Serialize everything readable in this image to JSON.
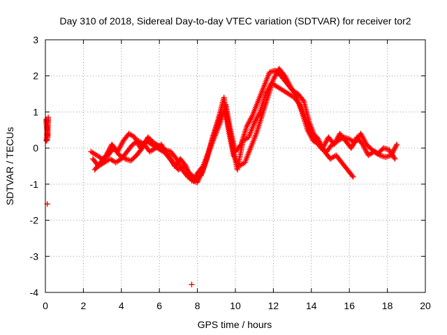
{
  "chart_data": {
    "type": "scatter",
    "title": "Day 310 of 2018, Sidereal Day-to-day VTEC variation (SDTVAR) for receiver tor2",
    "xlabel": "GPS time / hours",
    "ylabel": "SDTVAR / TECUs",
    "xlim": [
      0,
      20
    ],
    "ylim": [
      -4,
      3
    ],
    "xticks": [
      0,
      2,
      4,
      6,
      8,
      10,
      12,
      14,
      16,
      18,
      20
    ],
    "yticks": [
      -4,
      -3,
      -2,
      -1,
      0,
      1,
      2,
      3
    ],
    "grid": true,
    "marker": "plus",
    "color": "#ff0000",
    "series": [
      {
        "name": "tor2",
        "segments": [
          {
            "x": [
              0.05,
              0.05,
              0.08,
              0.1,
              0.12,
              0.15,
              0.05,
              0.1
            ],
            "y": [
              0.8,
              0.7,
              0.55,
              0.4,
              0.3,
              0.85,
              0.2,
              0.25
            ]
          },
          {
            "x": [
              0.1
            ],
            "y": [
              -1.55
            ]
          },
          {
            "x": [
              7.7
            ],
            "y": [
              -3.78
            ]
          },
          {
            "x": [
              2.4,
              2.7,
              3.0,
              3.3,
              3.6,
              3.9,
              4.2,
              4.5,
              4.8,
              5.1,
              5.4,
              5.7,
              6.0,
              6.3,
              6.6,
              6.9,
              7.2,
              7.5,
              7.8,
              8.0,
              8.3,
              8.6,
              8.9,
              9.2,
              9.5,
              9.7,
              10.0,
              10.3,
              10.6,
              10.9,
              11.2,
              11.5,
              11.8,
              12.1,
              12.4,
              12.7,
              13.0,
              13.3,
              13.6,
              13.9,
              14.2,
              14.5,
              14.8,
              15.1,
              15.4,
              15.7,
              16.0,
              16.3,
              16.6,
              16.9,
              17.2,
              17.5,
              17.8,
              18.1,
              18.4
            ],
            "y": [
              -0.1,
              -0.2,
              -0.3,
              -0.2,
              0.0,
              -0.2,
              -0.3,
              -0.35,
              -0.2,
              0.0,
              0.3,
              0.15,
              0.05,
              -0.05,
              -0.1,
              -0.3,
              -0.6,
              -0.8,
              -0.9,
              -0.7,
              -0.5,
              -0.1,
              0.3,
              0.7,
              1.2,
              0.6,
              -0.1,
              0.1,
              0.6,
              0.9,
              1.3,
              1.7,
              2.1,
              2.15,
              2.0,
              1.8,
              1.6,
              1.5,
              1.3,
              0.7,
              0.3,
              0.0,
              -0.1,
              0.1,
              0.2,
              0.3,
              0.25,
              0.15,
              0.4,
              0.1,
              -0.05,
              -0.15,
              0.0,
              -0.05,
              -0.3
            ]
          },
          {
            "x": [
              2.5,
              2.8,
              3.1,
              3.4,
              3.7,
              4.0,
              4.3,
              4.6,
              4.9,
              5.2,
              5.5,
              5.8,
              6.1,
              6.4,
              6.7,
              7.0,
              7.3,
              7.6,
              7.9,
              8.2,
              8.5,
              8.8,
              9.1,
              9.4,
              9.6,
              9.9,
              10.2,
              10.5,
              10.8,
              11.1,
              11.4,
              11.7,
              12.0,
              12.3,
              12.6,
              12.9,
              13.2,
              13.5,
              13.8,
              14.1,
              14.4,
              14.7,
              15.0,
              15.3,
              15.6,
              15.9,
              16.2
            ],
            "y": [
              -0.3,
              -0.5,
              -0.4,
              -0.3,
              -0.4,
              -0.3,
              -0.1,
              0.1,
              0.2,
              0.1,
              -0.1,
              0.0,
              0.1,
              -0.2,
              -0.4,
              -0.6,
              -0.5,
              -0.7,
              -0.85,
              -0.75,
              -0.3,
              0.3,
              0.8,
              1.4,
              0.6,
              -0.2,
              -0.5,
              -0.4,
              0.0,
              0.4,
              0.9,
              1.4,
              1.9,
              2.2,
              2.0,
              1.7,
              1.45,
              1.0,
              0.5,
              0.2,
              0.1,
              -0.1,
              -0.3,
              -0.2,
              -0.4,
              -0.6,
              -0.8
            ]
          },
          {
            "x": [
              2.6,
              2.9,
              3.2,
              3.5,
              3.8,
              4.1,
              4.4,
              4.7,
              5.0,
              5.3,
              5.6,
              5.9,
              6.2,
              6.5,
              6.8,
              7.1,
              7.4,
              7.7,
              8.0,
              8.3,
              8.6,
              8.9,
              9.2,
              9.5,
              9.8,
              10.1,
              10.4,
              10.7,
              11.0,
              11.3,
              11.6,
              11.9,
              12.2,
              12.5,
              12.8,
              13.1,
              13.4,
              13.7,
              14.0,
              14.3,
              14.6,
              14.9,
              15.2,
              15.5,
              15.8,
              16.1,
              16.4,
              16.7,
              17.0,
              17.3,
              17.6,
              17.9,
              18.2,
              18.5
            ],
            "y": [
              -0.6,
              -0.4,
              -0.2,
              0.1,
              -0.1,
              0.2,
              0.4,
              0.3,
              0.0,
              0.2,
              0.1,
              0.0,
              -0.1,
              -0.2,
              -0.5,
              -0.3,
              -0.5,
              -0.9,
              -0.95,
              -0.6,
              -0.1,
              0.4,
              0.9,
              1.0,
              0.2,
              -0.6,
              0.2,
              0.3,
              0.7,
              1.0,
              1.5,
              1.8,
              1.7,
              1.6,
              1.5,
              1.4,
              1.2,
              0.8,
              0.4,
              0.3,
              0.0,
              0.3,
              0.1,
              0.4,
              0.2,
              0.0,
              0.3,
              0.1,
              -0.2,
              -0.1,
              -0.2,
              -0.25,
              -0.2,
              0.1
            ]
          }
        ]
      }
    ]
  }
}
